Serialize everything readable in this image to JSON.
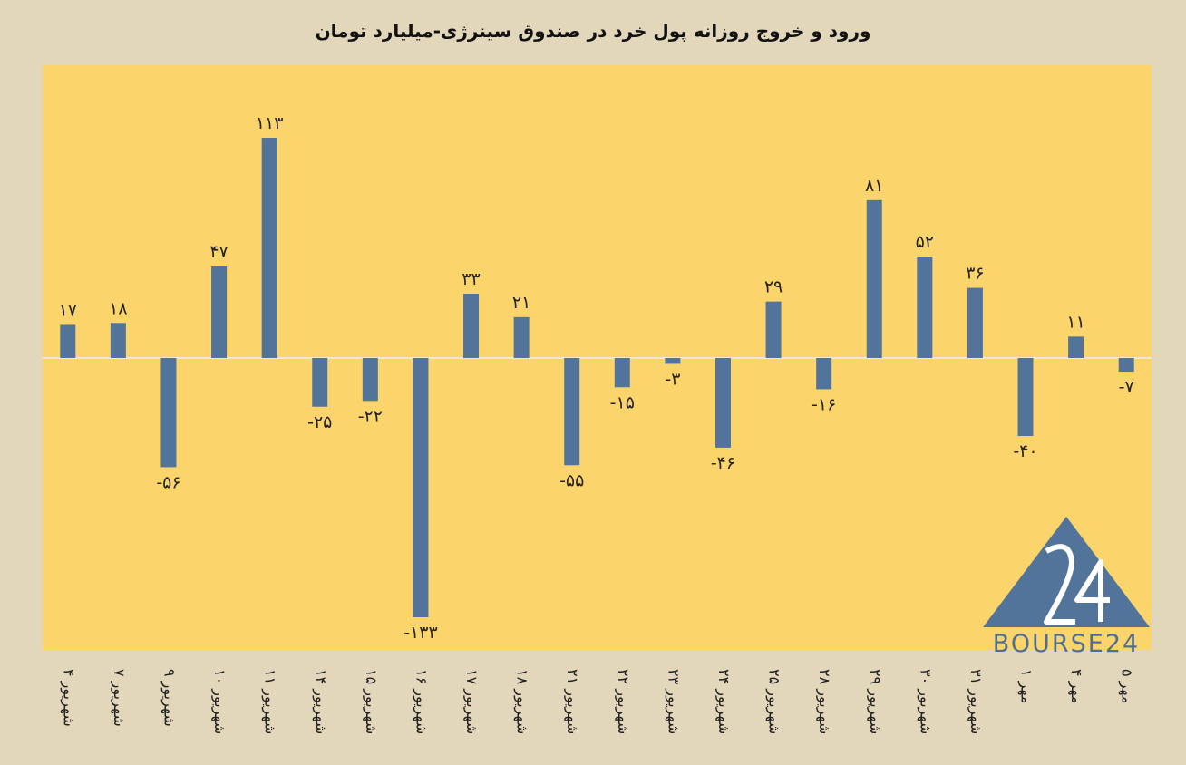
{
  "title": "ورود و خروج روزانه پول خرد در صندوق سینرژی-میلیارد تومان",
  "logo_text": "BOURSE24",
  "colors": {
    "plot_bg": "#fcd46c",
    "bar": "#53749a",
    "zero_line": "#efe7d2",
    "page_bg": "#e2d7bb"
  },
  "chart_data": {
    "type": "bar",
    "title": "ورود و خروج روزانه پول خرد در صندوق سینرژی-میلیارد تومان",
    "xlabel": "",
    "ylabel": "",
    "ylim": [
      -150,
      140
    ],
    "grid": false,
    "categories": [
      "۴ شهریور",
      "۷ شهریور",
      "۹ شهریور",
      "۱۰ شهریور",
      "۱۱ شهریور",
      "۱۴ شهریور",
      "۱۵ شهریور",
      "۱۶ شهریور",
      "۱۷ شهریور",
      "۱۸ شهریور",
      "۲۱ شهریور",
      "۲۲ شهریور",
      "۲۳ شهریور",
      "۲۴ شهریور",
      "۲۵ شهریور",
      "۲۸ شهریور",
      "۲۹ شهریور",
      "۳۰ شهریور",
      "۳۱ شهریور",
      "۱ مهر",
      "۴ مهر",
      "۵ مهر"
    ],
    "values": [
      17,
      18,
      -56,
      47,
      113,
      -25,
      -22,
      -133,
      33,
      21,
      -55,
      -15,
      -3,
      -46,
      29,
      -16,
      81,
      52,
      36,
      -40,
      11,
      -7
    ],
    "value_labels": [
      "۱۷",
      "۱۸",
      "-۵۶",
      "۴۷",
      "۱۱۳",
      "-۲۵",
      "-۲۲",
      "-۱۳۳",
      "۳۳",
      "۲۱",
      "-۵۵",
      "-۱۵",
      "-۳",
      "-۴۶",
      "۲۹",
      "-۱۶",
      "۸۱",
      "۵۲",
      "۳۶",
      "-۴۰",
      "۱۱",
      "-۷"
    ]
  }
}
